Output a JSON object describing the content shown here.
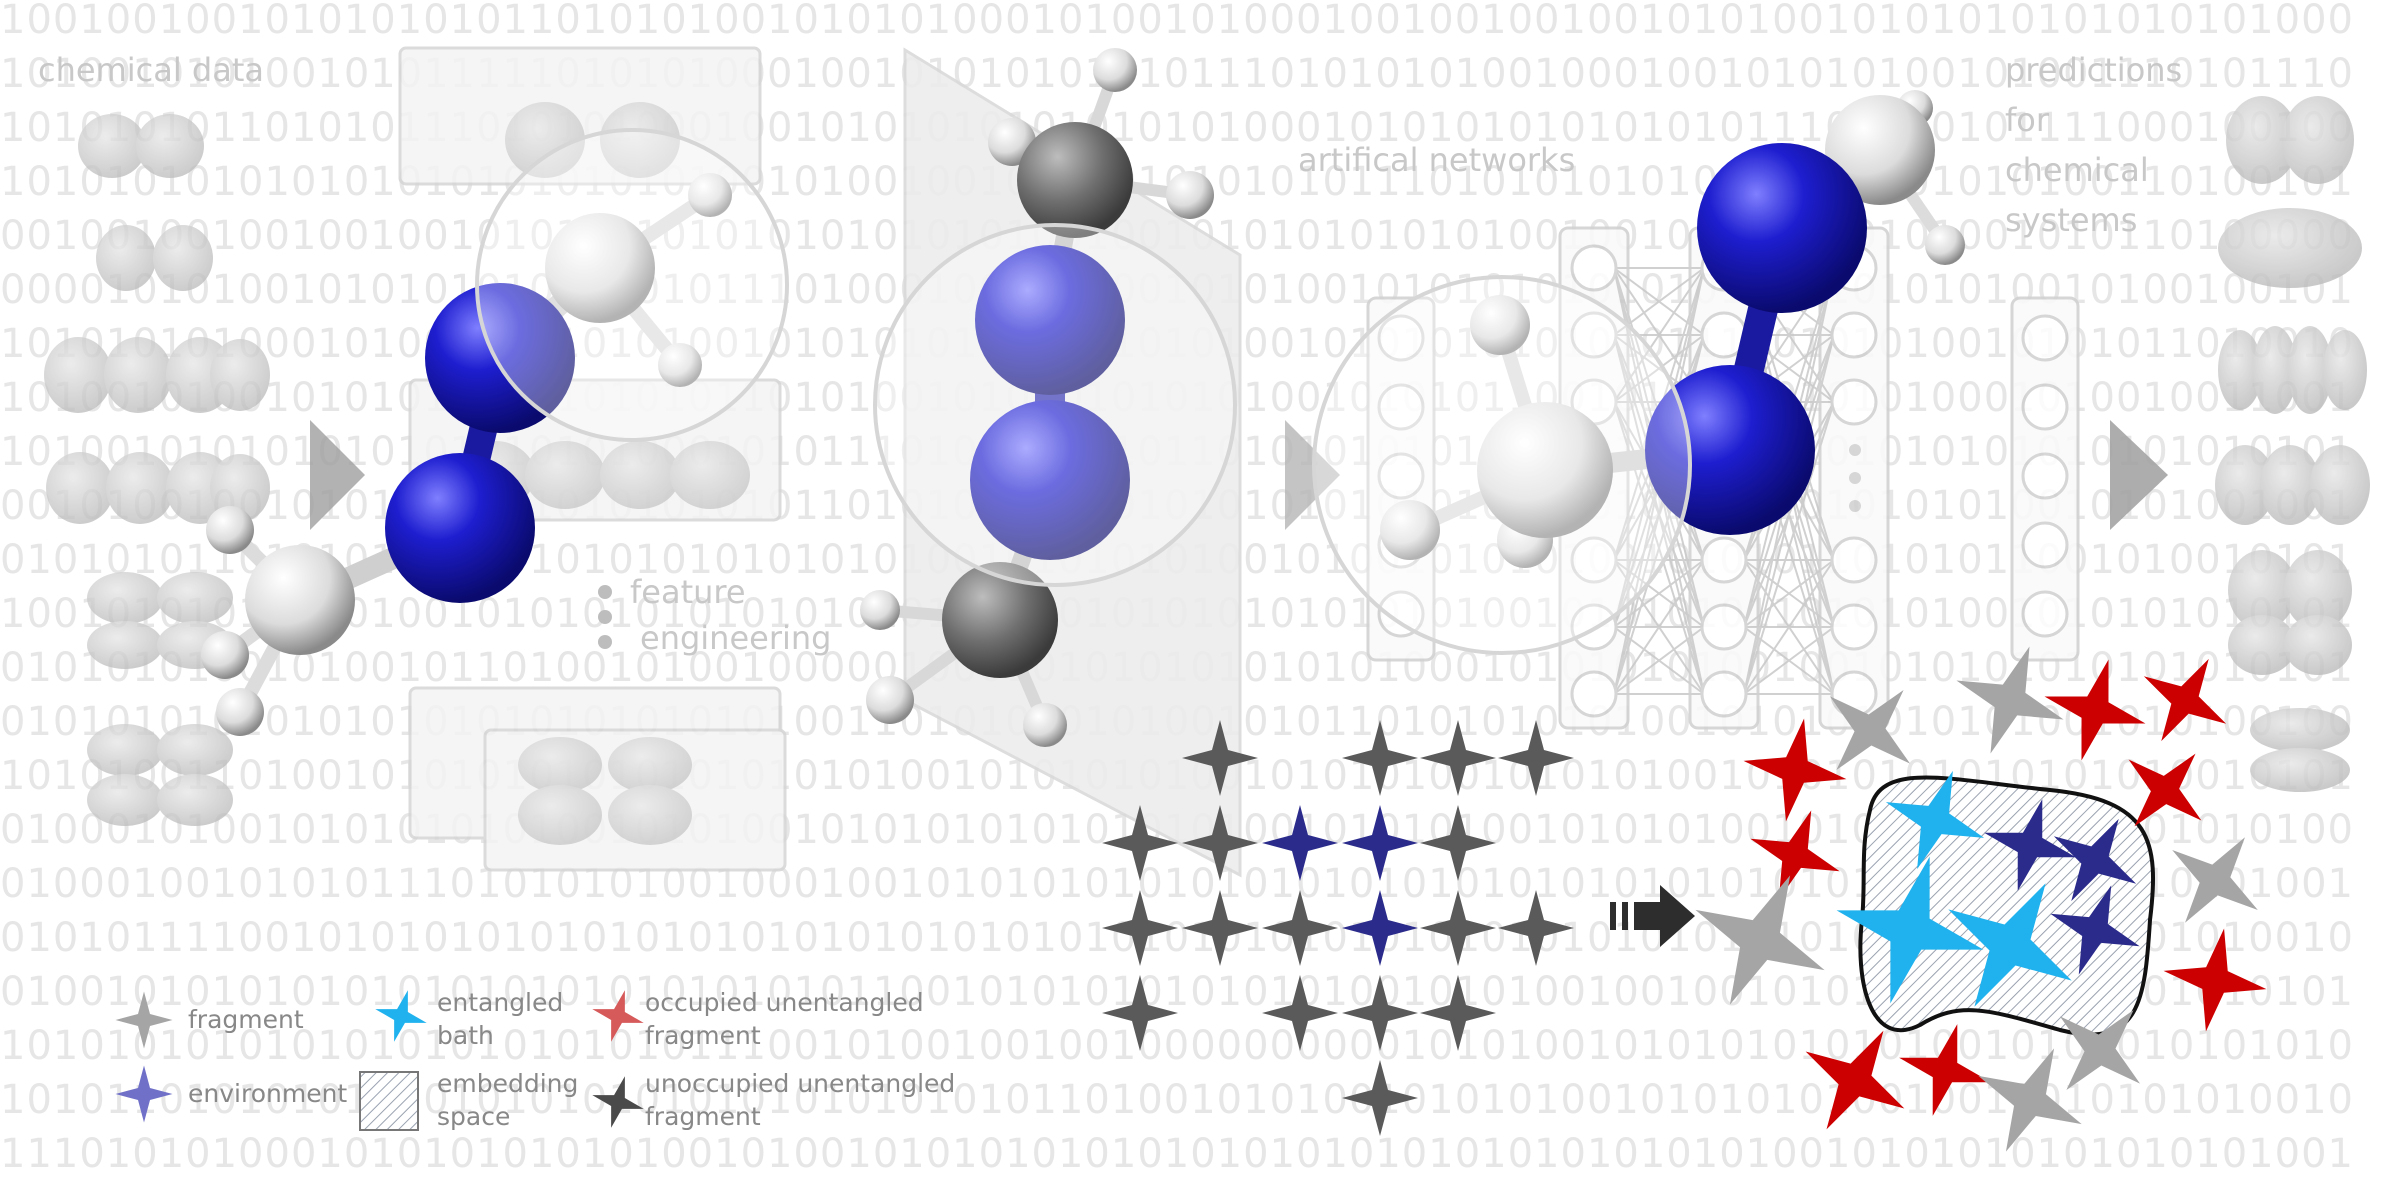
{
  "binary_rows": [
    "10010010010101010101101010100101010100010100101000100100100100101010010101010101010101000",
    "10100101010010101111101010100010010101010101011101010101001000100101010100101001110101110",
    "10101010110101011101010100010010101010101010101000101010101010101011101010101111000100100",
    "10101010101010101010101010100101001001010101010101011101010101010010101001010100110100101",
    "00100100100100100101010010101010101010100100101010101010100100101010100101001010110100000",
    "00001010100101010101010101011101000100101000101010010101010101010101010101010010100100101",
    "10101010100010100100110101001010101010101010101001010101010101011100101010010101011010010",
    "10100101001010101001010101011010100101010101010100101010110010101010101010001010010011001",
    "10100101010101010101010100010101110101001010110101010101000001010110101010101010101010101",
    "00101001001010101000101010101011010101010101010101010101001001010101010101010010101001001",
    "01010101101010101010101010101010101001010101010010100101010100101010110101011001010010101",
    "10010101010100100101010101010101010100010101010101010101001010101011010101001010101010101",
    "01010101001010010110100101001000001000101010101010101000101010101001001010101010101010101",
    "01010101010101010101010101010100110101010101001010110101010101001010101010101001010100100",
    "10101001101001010101010101010101010010101010100101010100101010100101010101010101010010101",
    "01000101001010101010100101010010101010101010101001010101001010101001010101001010101010100",
    "01000100101010111010101010010001001010101010101010101010101010101010101010101001010101001",
    "01010111100101010101010101010101010101010101010101010101010101010101010101010101001010010",
    "01001010101010101010101010101010110010101010101010100101010010010010101010101010101010101",
    "10101010101010101010101010111001010010010010000000000101010010101010101010010101010101010",
    "10101101010101010101010101010101010101011010010101001010101001010101010010010010101010010",
    "11101010100010101010101010010100101010101010101010101010101010101010010101010101010101001"
  ],
  "labels": {
    "chemical_data": "chemical data",
    "feature_engineering_1": "feature",
    "feature_engineering_2": "engineering",
    "artificial_networks": "artifical networks",
    "predictions_1": "predictions",
    "predictions_2": "for",
    "predictions_3": "chemical",
    "predictions_4": "systems"
  },
  "legend": {
    "fragment": "fragment",
    "environment": "environment",
    "entangled_bath_1": "entangled",
    "entangled_bath_2": "bath",
    "embedding_space_1": "embedding",
    "embedding_space_2": "space",
    "occupied_1": "occupied unentangled",
    "occupied_2": "fragment",
    "unoccupied_1": "unoccupied unentangled",
    "unoccupied_2": "fragment"
  },
  "icons": [
    "arrow-right-icon",
    "bold-arrow-right-icon",
    "four-point-star-icon",
    "molecule-icon",
    "orbital-icon",
    "neural-network-icon"
  ],
  "colors": {
    "nitrogen_blue": "#1a1aaa",
    "fragment_gray": "#5a5a5a",
    "light_fragment": "#a5a5a5",
    "environment_navy": "#2b2b8c",
    "entangled_cyan": "#1fb2ee",
    "occupied_red": "#cc0000",
    "binary_text": "#e6e6e6",
    "label_gray": "#c8c8c8"
  }
}
